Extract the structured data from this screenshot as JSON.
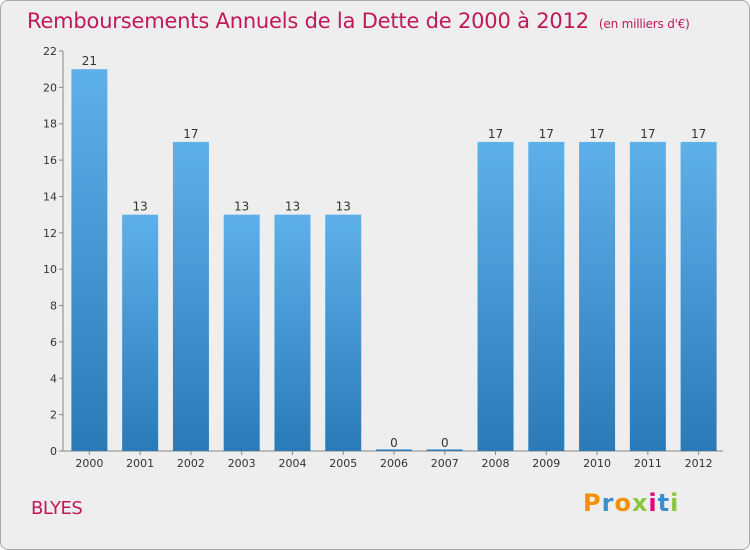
{
  "header": {
    "title": "Remboursements Annuels de la Dette de 2000 à 2012",
    "unit_note": "(en milliers d'€)"
  },
  "footer": {
    "commune": "BLYES",
    "logo_text": "Proxiti",
    "logo_colors": [
      "#f39200",
      "#3b8fd1",
      "#f39200",
      "#8cc63f",
      "#e5007e",
      "#3b8fd1",
      "#8cc63f"
    ]
  },
  "chart_data": {
    "type": "bar",
    "title": "Remboursements Annuels de la Dette de 2000 à 2012",
    "subtitle": "(en milliers d'€)",
    "categories": [
      "2000",
      "2001",
      "2002",
      "2003",
      "2004",
      "2005",
      "2006",
      "2007",
      "2008",
      "2009",
      "2010",
      "2011",
      "2012"
    ],
    "values": [
      21,
      13,
      17,
      13,
      13,
      13,
      0,
      0,
      17,
      17,
      17,
      17,
      17
    ],
    "data_labels": [
      "21",
      "13",
      "17",
      "13",
      "13",
      "13",
      "0",
      "0",
      "17",
      "17",
      "17",
      "17",
      "17"
    ],
    "ylim": [
      0,
      22
    ],
    "yticks": [
      0,
      2,
      4,
      6,
      8,
      10,
      12,
      14,
      16,
      18,
      20,
      22
    ],
    "grid": false,
    "bar_color_top": "#5eb0ea",
    "bar_color_bottom": "#2a7ab8",
    "text_color": "#333333"
  }
}
